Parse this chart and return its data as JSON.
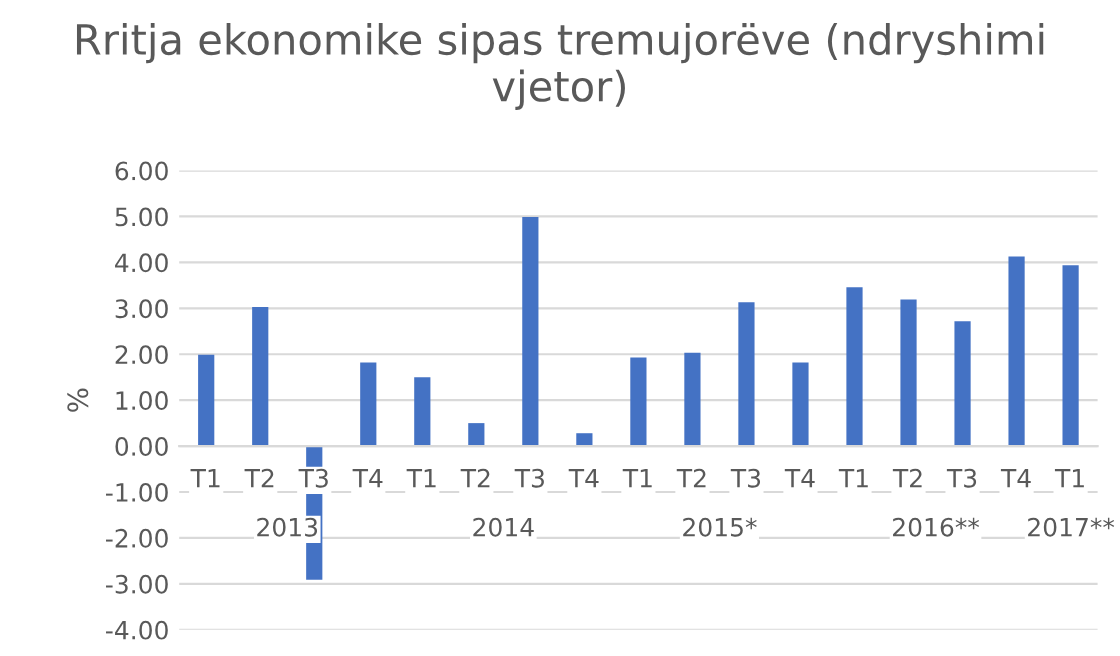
{
  "chart_data": {
    "type": "bar",
    "title": "Rritja ekonomike sipas tremujorëve (ndryshimi vjetor)",
    "ylabel": "%",
    "categories": [
      "T1",
      "T2",
      "T3",
      "T4",
      "T1",
      "T2",
      "T3",
      "T4",
      "T1",
      "T2",
      "T3",
      "T4",
      "T1",
      "T2",
      "T3",
      "T4",
      "T1"
    ],
    "values": [
      1.99,
      3.03,
      -2.91,
      1.82,
      1.5,
      0.5,
      4.99,
      0.28,
      1.93,
      2.03,
      3.13,
      1.82,
      3.46,
      3.19,
      2.72,
      4.13,
      3.94
    ],
    "color": "#4472c4",
    "annotations": [
      "2013",
      "2014",
      "2015*",
      "2016**",
      "2017**"
    ],
    "ylim": [
      -4,
      6
    ],
    "yticks": [
      {
        "value": -4,
        "label": "-4.00"
      },
      {
        "value": -3,
        "label": "-3.00"
      },
      {
        "value": -2,
        "label": "-2.00"
      },
      {
        "value": -1,
        "label": "-1.00"
      },
      {
        "value": 0,
        "label": "0.00"
      },
      {
        "value": 1,
        "label": "1.00"
      },
      {
        "value": 2,
        "label": "2.00"
      },
      {
        "value": 3,
        "label": "3.00"
      },
      {
        "value": 4,
        "label": "4.00"
      },
      {
        "value": 5,
        "label": "5.00"
      },
      {
        "value": 6,
        "label": "6.00"
      }
    ],
    "grid": "y"
  }
}
